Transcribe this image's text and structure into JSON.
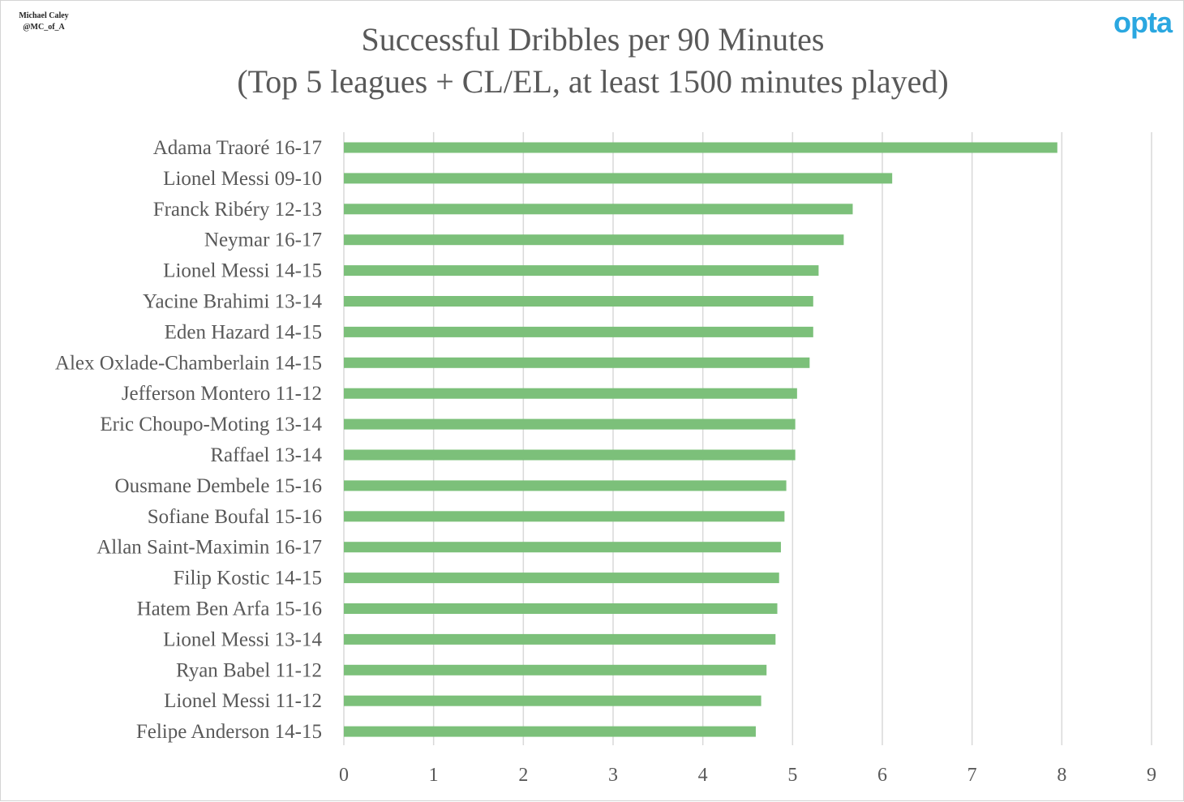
{
  "credit": {
    "line1": "Michael Caley",
    "line2": "@MC_of_A"
  },
  "logo": {
    "text": "opta",
    "color": "#2aa7e0"
  },
  "colors": {
    "bar": "#7cc07a",
    "grid": "#d9d9d9",
    "text": "#595959"
  },
  "chart_data": {
    "type": "bar",
    "orientation": "horizontal",
    "title": "Successful Dribbles per 90 Minutes",
    "subtitle": "(Top 5 leagues + CL/EL, at least 1500 minutes played)",
    "xlabel": "",
    "ylabel": "",
    "xlim": [
      0,
      9
    ],
    "xticks": [
      "0",
      "1",
      "2",
      "3",
      "4",
      "5",
      "6",
      "7",
      "8",
      "9"
    ],
    "grid": true,
    "categories": [
      "Adama Traoré 16-17",
      "Lionel Messi 09-10",
      "Franck Ribéry 12-13",
      "Neymar 16-17",
      "Lionel Messi 14-15",
      "Yacine Brahimi 13-14",
      "Eden Hazard 14-15",
      "Alex Oxlade-Chamberlain 14-15",
      "Jefferson Montero 11-12",
      "Eric Choupo-Moting 13-14",
      "Raffael 13-14",
      "Ousmane Dembele 15-16",
      "Sofiane Boufal 15-16",
      "Allan Saint-Maximin 16-17",
      "Filip Kostic 14-15",
      "Hatem Ben Arfa 15-16",
      "Lionel Messi 13-14",
      "Ryan Babel 11-12",
      "Lionel Messi 11-12",
      "Felipe Anderson 14-15"
    ],
    "values": [
      7.95,
      6.11,
      5.67,
      5.57,
      5.29,
      5.23,
      5.23,
      5.19,
      5.05,
      5.03,
      5.03,
      4.93,
      4.91,
      4.87,
      4.85,
      4.83,
      4.81,
      4.71,
      4.65,
      4.59
    ]
  }
}
